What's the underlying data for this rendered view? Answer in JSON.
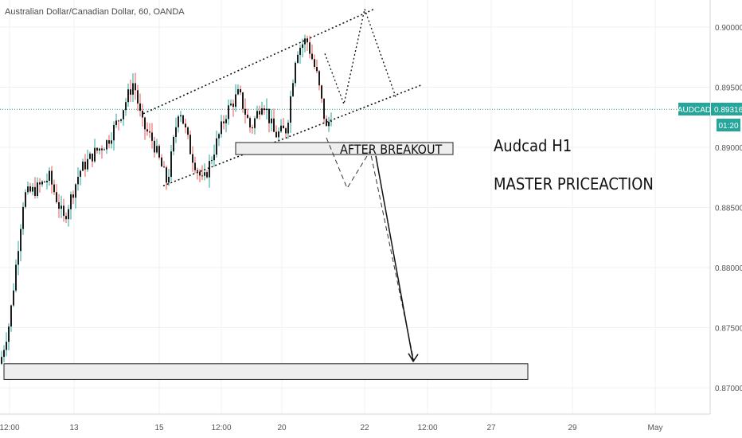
{
  "header": {
    "title": "Australian Dollar/Canadian Dollar, 60, OANDA"
  },
  "price_axis": {
    "ticks": [
      "0.90000",
      "0.89500",
      "0.89000",
      "0.88500",
      "0.88000",
      "0.87500",
      "0.87000"
    ],
    "symbol_tag": "AUDCAD",
    "current_price": "0.89316",
    "countdown": "01:20"
  },
  "time_axis": {
    "ticks": [
      "12:00",
      "13",
      "15",
      "12:00",
      "20",
      "22",
      "12:00",
      "27",
      "29",
      "May"
    ]
  },
  "annotations": {
    "breakout_label": "AFTER BREAKOUT",
    "note_title": "Audcad H1",
    "note_subtitle": "MASTER PRICEACTION"
  },
  "colors": {
    "up": "#26a69a",
    "down": "#ef5350",
    "candle_body": "#1b1b1b",
    "price_line": "#26a69a",
    "box_fill": "#eeeeee"
  },
  "chart_data": {
    "type": "candlestick",
    "title": "Australian Dollar/Canadian Dollar, 60, OANDA",
    "symbol": "AUDCAD",
    "interval": "60",
    "current_price": 0.89316,
    "ylim": [
      0.8668,
      0.9033
    ],
    "y_ticks": [
      0.9,
      0.895,
      0.89,
      0.885,
      0.88,
      0.875,
      0.87
    ],
    "x_ticks": [
      "12:00",
      "13",
      "15",
      "12:00",
      "20",
      "22",
      "12:00",
      "27",
      "29",
      "May"
    ],
    "grid": true,
    "path_keypoints": [
      {
        "t": 0,
        "p": 0.872
      },
      {
        "t": 12,
        "p": 0.8755
      },
      {
        "t": 30,
        "p": 0.886
      },
      {
        "t": 45,
        "p": 0.8865
      },
      {
        "t": 62,
        "p": 0.8875
      },
      {
        "t": 80,
        "p": 0.884
      },
      {
        "t": 100,
        "p": 0.888
      },
      {
        "t": 118,
        "p": 0.8895
      },
      {
        "t": 135,
        "p": 0.8905
      },
      {
        "t": 150,
        "p": 0.8925
      },
      {
        "t": 168,
        "p": 0.8955
      },
      {
        "t": 178,
        "p": 0.892
      },
      {
        "t": 192,
        "p": 0.8905
      },
      {
        "t": 210,
        "p": 0.887
      },
      {
        "t": 225,
        "p": 0.8935
      },
      {
        "t": 240,
        "p": 0.8895
      },
      {
        "t": 255,
        "p": 0.887
      },
      {
        "t": 270,
        "p": 0.89
      },
      {
        "t": 285,
        "p": 0.893
      },
      {
        "t": 300,
        "p": 0.8945
      },
      {
        "t": 315,
        "p": 0.8915
      },
      {
        "t": 330,
        "p": 0.894
      },
      {
        "t": 345,
        "p": 0.891
      },
      {
        "t": 360,
        "p": 0.8915
      },
      {
        "t": 372,
        "p": 0.898
      },
      {
        "t": 385,
        "p": 0.899
      },
      {
        "t": 398,
        "p": 0.896
      },
      {
        "t": 410,
        "p": 0.8915
      },
      {
        "t": 418,
        "p": 0.8932
      }
    ],
    "channel": {
      "upper": [
        {
          "t": 180,
          "p": 0.8928
        },
        {
          "t": 470,
          "p": 0.9015
        }
      ],
      "lower": [
        {
          "t": 205,
          "p": 0.8868
        },
        {
          "t": 530,
          "p": 0.8952
        }
      ]
    },
    "zones": [
      {
        "label": "AFTER BREAKOUT",
        "t0": 296,
        "t1": 569,
        "p_top": 0.8904,
        "p_bottom": 0.8894
      },
      {
        "label": "",
        "t0": 5,
        "t1": 663,
        "p_top": 0.872,
        "p_bottom": 0.8707
      }
    ],
    "projection_up": [
      {
        "t": 408,
        "p": 0.8978
      },
      {
        "t": 432,
        "p": 0.8936
      },
      {
        "t": 458,
        "p": 0.9015
      },
      {
        "t": 497,
        "p": 0.8942
      }
    ],
    "projection_down_dashed": [
      {
        "t": 410,
        "p": 0.8908
      },
      {
        "t": 436,
        "p": 0.8866
      },
      {
        "t": 465,
        "p": 0.8897
      },
      {
        "t": 520,
        "p": 0.8722
      }
    ],
    "breakdown_arrow": [
      {
        "t": 472,
        "p": 0.8893
      },
      {
        "t": 519,
        "p": 0.8722
      }
    ]
  }
}
